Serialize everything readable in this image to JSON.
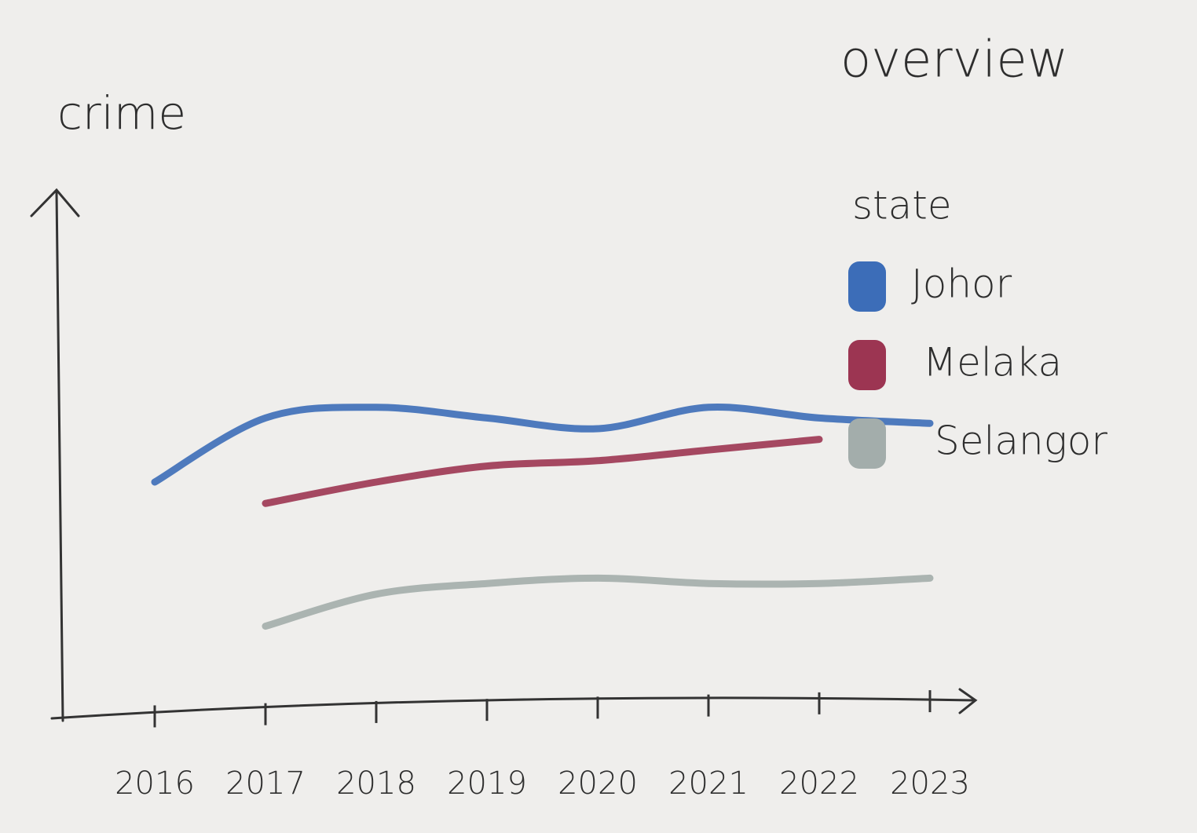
{
  "chart_data": {
    "type": "line",
    "title": "overview",
    "y_label": "crime",
    "legend_title": "state",
    "categories": [
      "2016",
      "2017",
      "2018",
      "2019",
      "2020",
      "2021",
      "2022",
      "2023"
    ],
    "ylim": [
      0,
      100
    ],
    "series": [
      {
        "name": "Johor",
        "color": "#3c6db8",
        "values": [
          45,
          57,
          59,
          57,
          55,
          59,
          57,
          56
        ]
      },
      {
        "name": "Melaka",
        "color": "#9c3552",
        "values": [
          null,
          41,
          45,
          48,
          49,
          51,
          53,
          null
        ]
      },
      {
        "name": "Selangor",
        "color": "#a3adab",
        "values": [
          null,
          18,
          24,
          26,
          27,
          26,
          26,
          27
        ]
      }
    ]
  }
}
